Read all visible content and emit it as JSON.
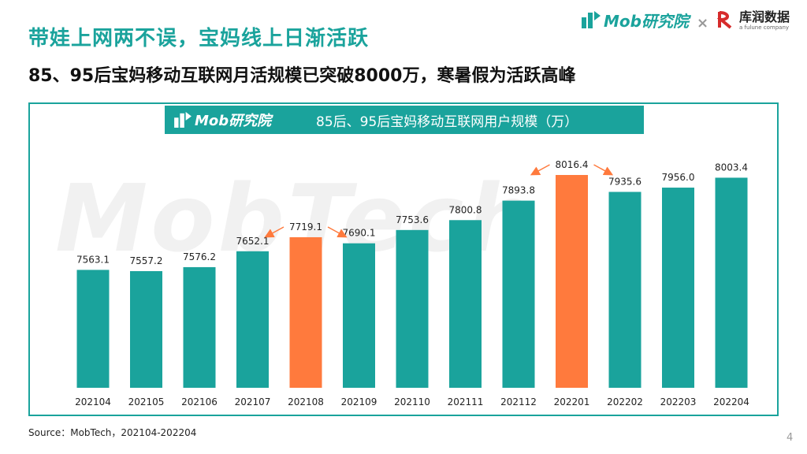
{
  "header": {
    "title": "带娃上网两不误，宝妈线上日渐活跃",
    "subtitle": "85、95后宝妈移动互联网月活规模已突破8000万，寒暑假为活跃高峰"
  },
  "brands": {
    "mob": "Mob研究院",
    "separator": "×",
    "partner": "库润数据",
    "partner_sub": "a fulune company"
  },
  "chart_header": {
    "logo": "Mob研究院",
    "title": "85后、95后宝妈移动互联网用户规模（万）"
  },
  "watermark": "MobTech",
  "colors": {
    "accent": "#1aa39c",
    "highlight": "#ff7a3d"
  },
  "chart_data": {
    "type": "bar",
    "title": "85后、95后宝妈移动互联网用户规模（万）",
    "xlabel": "",
    "ylabel": "",
    "ylim": [
      7000,
      8150
    ],
    "categories": [
      "202104",
      "202105",
      "202106",
      "202107",
      "202108",
      "202109",
      "202110",
      "202111",
      "202112",
      "202201",
      "202202",
      "202203",
      "202204"
    ],
    "values": [
      7563.1,
      7557.2,
      7576.2,
      7652.1,
      7719.1,
      7690.1,
      7753.6,
      7800.8,
      7893.8,
      8016.4,
      7935.6,
      7956.0,
      8003.4
    ],
    "value_labels": [
      "7563.1",
      "7557.2",
      "7576.2",
      "7652.1",
      "7719.1",
      "7690.1",
      "7753.6",
      "7800.8",
      "7893.8",
      "8016.4",
      "7935.6",
      "7956.0",
      "8003.4"
    ],
    "highlighted": [
      "202108",
      "202201"
    ]
  },
  "footer": {
    "source": "Source：MobTech，202104-202204",
    "page": "4"
  }
}
